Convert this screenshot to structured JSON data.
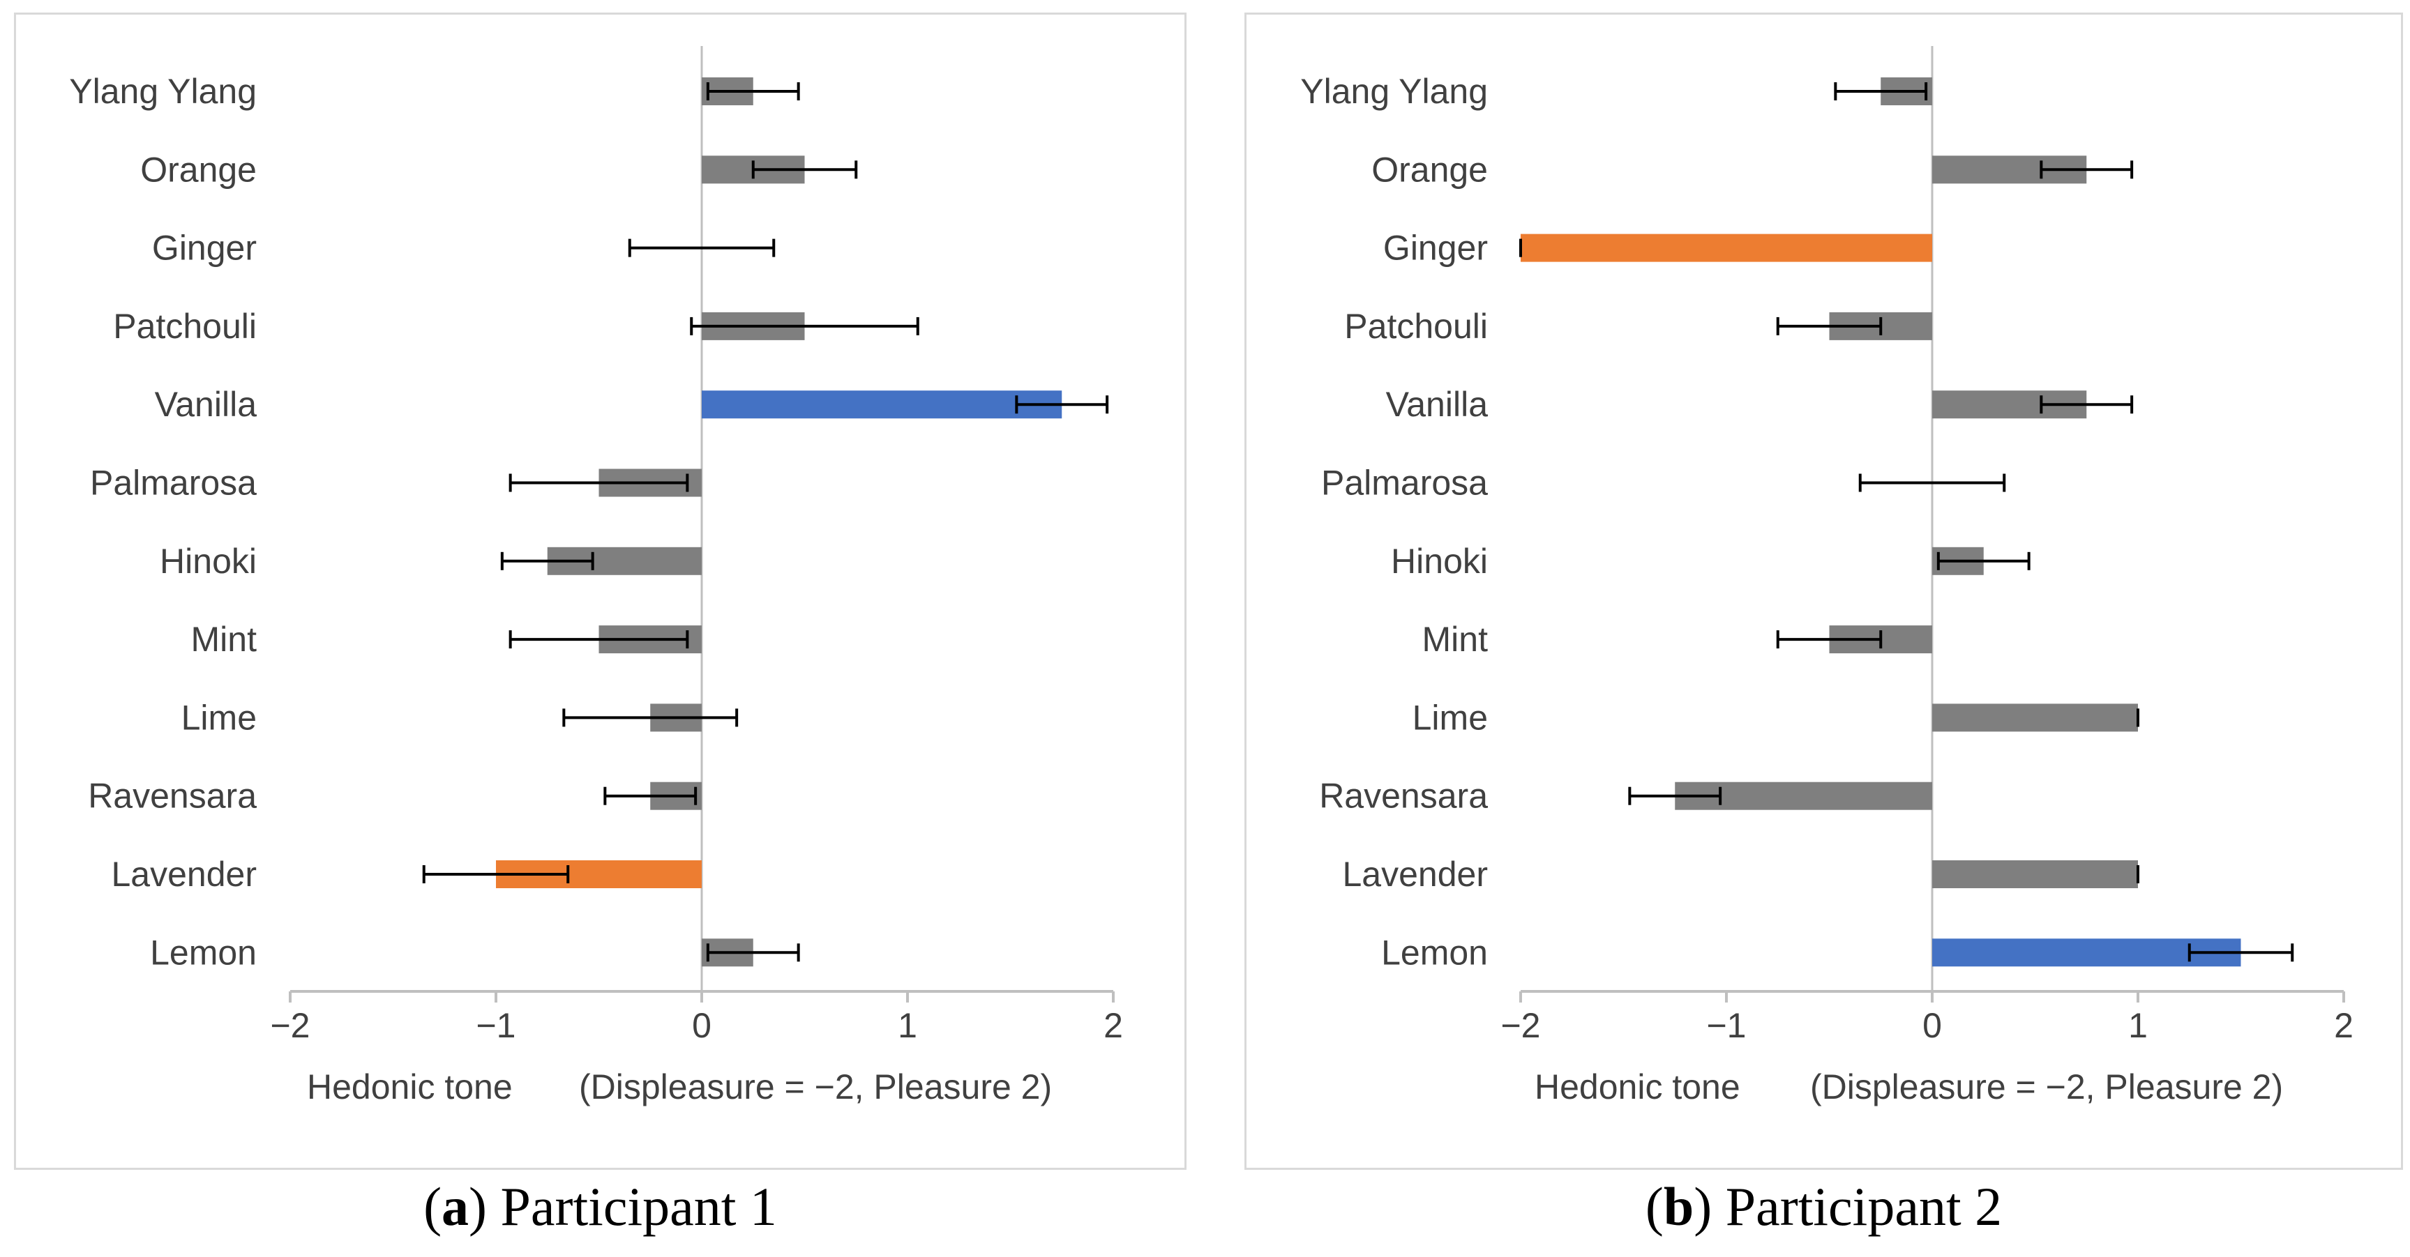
{
  "chart_data": [
    {
      "type": "bar",
      "orientation": "horizontal",
      "panel_label": "a",
      "caption_text": "Participant 1",
      "categories": [
        "Ylang Ylang",
        "Orange",
        "Ginger",
        "Patchouli",
        "Vanilla",
        "Palmarosa",
        "Hinoki",
        "Mint",
        "Lime",
        "Ravensara",
        "Lavender",
        "Lemon"
      ],
      "values": [
        0.25,
        0.5,
        0.0,
        0.5,
        1.75,
        -0.5,
        -0.75,
        -0.5,
        -0.25,
        -0.25,
        -1.0,
        0.25
      ],
      "error_bars": [
        0.22,
        0.25,
        0.35,
        0.55,
        0.22,
        0.43,
        0.22,
        0.43,
        0.42,
        0.22,
        0.35,
        0.22
      ],
      "bar_colors": [
        "#7f7f7f",
        "#7f7f7f",
        "#7f7f7f",
        "#7f7f7f",
        "#4472c4",
        "#7f7f7f",
        "#7f7f7f",
        "#7f7f7f",
        "#7f7f7f",
        "#7f7f7f",
        "#ed7d31",
        "#7f7f7f"
      ],
      "xlim": [
        -2,
        2
      ],
      "xticks": [
        "−2",
        "−1",
        "0",
        "1",
        "2"
      ],
      "xlabel_left": "Hedonic tone",
      "xlabel_right": "(Displeasure = −2, Pleasure 2)"
    },
    {
      "type": "bar",
      "orientation": "horizontal",
      "panel_label": "b",
      "caption_text": "Participant 2",
      "categories": [
        "Ylang Ylang",
        "Orange",
        "Ginger",
        "Patchouli",
        "Vanilla",
        "Palmarosa",
        "Hinoki",
        "Mint",
        "Lime",
        "Ravensara",
        "Lavender",
        "Lemon"
      ],
      "values": [
        -0.25,
        0.75,
        -2.0,
        -0.5,
        0.75,
        0.0,
        0.25,
        -0.5,
        1.0,
        -1.25,
        1.0,
        1.5
      ],
      "error_bars": [
        0.22,
        0.22,
        0.0,
        0.25,
        0.22,
        0.35,
        0.22,
        0.25,
        0.0,
        0.22,
        0.0,
        0.25
      ],
      "bar_colors": [
        "#7f7f7f",
        "#7f7f7f",
        "#ed7d31",
        "#7f7f7f",
        "#7f7f7f",
        "#7f7f7f",
        "#7f7f7f",
        "#7f7f7f",
        "#7f7f7f",
        "#7f7f7f",
        "#7f7f7f",
        "#4472c4"
      ],
      "xlim": [
        -2,
        2
      ],
      "xticks": [
        "−2",
        "−1",
        "0",
        "1",
        "2"
      ],
      "xlabel_left": "Hedonic tone",
      "xlabel_right": "(Displeasure = −2, Pleasure 2)"
    }
  ],
  "colors": {
    "neutral_bar": "#7f7f7f",
    "highest_bar": "#4472c4",
    "lowest_bar": "#ed7d31",
    "axis": "#bfbfbf",
    "text": "#404040",
    "error_bar": "#000000"
  }
}
